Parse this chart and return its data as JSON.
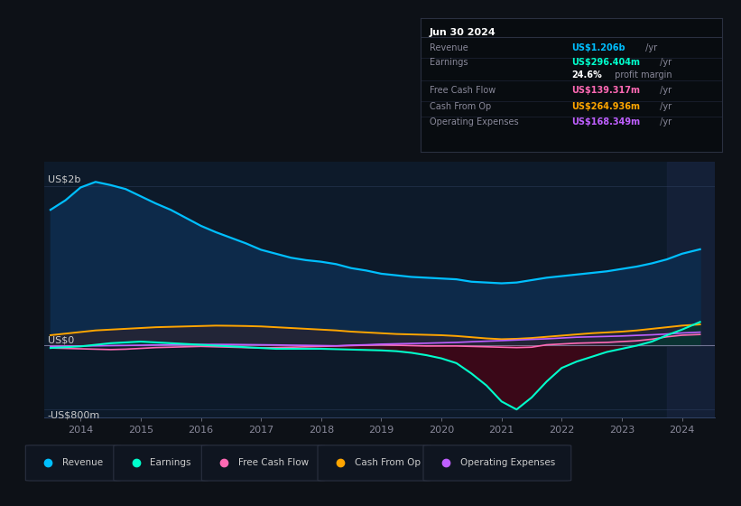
{
  "bg_color": "#0d1117",
  "plot_bg_color": "#0d1a2a",
  "fig_width": 8.21,
  "fig_height": 5.6,
  "dpi": 100,
  "years": [
    2013.5,
    2013.75,
    2014.0,
    2014.25,
    2014.5,
    2014.75,
    2015.0,
    2015.25,
    2015.5,
    2015.75,
    2016.0,
    2016.25,
    2016.5,
    2016.75,
    2017.0,
    2017.25,
    2017.5,
    2017.75,
    2018.0,
    2018.25,
    2018.5,
    2018.75,
    2019.0,
    2019.25,
    2019.5,
    2019.75,
    2020.0,
    2020.25,
    2020.5,
    2020.75,
    2021.0,
    2021.25,
    2021.5,
    2021.75,
    2022.0,
    2022.25,
    2022.5,
    2022.75,
    2023.0,
    2023.25,
    2023.5,
    2023.75,
    2024.0,
    2024.3
  ],
  "revenue": [
    1700,
    1820,
    1980,
    2050,
    2010,
    1960,
    1870,
    1780,
    1700,
    1600,
    1500,
    1420,
    1350,
    1280,
    1200,
    1150,
    1100,
    1070,
    1050,
    1020,
    970,
    940,
    900,
    880,
    860,
    850,
    840,
    830,
    800,
    790,
    780,
    790,
    820,
    850,
    870,
    890,
    910,
    930,
    960,
    990,
    1030,
    1080,
    1150,
    1206
  ],
  "earnings": [
    -30,
    -20,
    -10,
    10,
    30,
    40,
    50,
    40,
    30,
    20,
    10,
    0,
    -10,
    -20,
    -30,
    -40,
    -40,
    -40,
    -40,
    -45,
    -50,
    -55,
    -60,
    -70,
    -90,
    -120,
    -160,
    -220,
    -350,
    -500,
    -700,
    -800,
    -650,
    -450,
    -280,
    -200,
    -140,
    -80,
    -40,
    0,
    50,
    130,
    200,
    296
  ],
  "free_cash_flow": [
    -30,
    -35,
    -40,
    -45,
    -50,
    -45,
    -35,
    -25,
    -20,
    -15,
    -10,
    -15,
    -20,
    -25,
    -30,
    -25,
    -20,
    -15,
    -10,
    -5,
    0,
    5,
    10,
    5,
    0,
    -5,
    -5,
    -5,
    -10,
    -15,
    -20,
    -25,
    -20,
    10,
    20,
    30,
    35,
    40,
    50,
    60,
    80,
    110,
    130,
    139
  ],
  "cash_from_op": [
    130,
    150,
    170,
    190,
    200,
    210,
    220,
    230,
    235,
    240,
    245,
    250,
    248,
    245,
    240,
    230,
    220,
    210,
    200,
    190,
    175,
    165,
    155,
    145,
    140,
    135,
    130,
    120,
    105,
    90,
    80,
    85,
    95,
    110,
    125,
    140,
    155,
    165,
    175,
    190,
    210,
    230,
    250,
    265
  ],
  "operating_expenses": [
    -10,
    -8,
    -5,
    -3,
    0,
    2,
    5,
    8,
    10,
    12,
    14,
    15,
    14,
    12,
    10,
    8,
    5,
    3,
    0,
    -3,
    5,
    10,
    18,
    22,
    26,
    30,
    35,
    40,
    48,
    55,
    62,
    70,
    78,
    85,
    95,
    105,
    110,
    115,
    120,
    128,
    135,
    145,
    158,
    168
  ],
  "revenue_color": "#00bfff",
  "earnings_color": "#00ffcc",
  "fcf_color": "#ff69b4",
  "cashop_color": "#ffa500",
  "opex_color": "#bf5fff",
  "ylabel_2b": "US$2b",
  "ylabel_0": "US$0",
  "ylabel_neg800m": "-US$800m",
  "ylim_min": -900,
  "ylim_max": 2300,
  "xlim_min": 2013.4,
  "xlim_max": 2024.55,
  "xticks": [
    2014,
    2015,
    2016,
    2017,
    2018,
    2019,
    2020,
    2021,
    2022,
    2023,
    2024
  ],
  "legend_labels": [
    "Revenue",
    "Earnings",
    "Free Cash Flow",
    "Cash From Op",
    "Operating Expenses"
  ],
  "legend_colors": [
    "#00bfff",
    "#00ffcc",
    "#ff69b4",
    "#ffa500",
    "#bf5fff"
  ],
  "info_box": {
    "date": "Jun 30 2024",
    "rows": [
      {
        "label": "Revenue",
        "value": "US$1.206b",
        "color": "#00bfff",
        "suffix": "/yr"
      },
      {
        "label": "Earnings",
        "value": "US$296.404m",
        "color": "#00ffcc",
        "suffix": "/yr"
      },
      {
        "label": "",
        "value": "24.6%",
        "color": "#ffffff",
        "suffix": "profit margin"
      },
      {
        "label": "Free Cash Flow",
        "value": "US$139.317m",
        "color": "#ff69b4",
        "suffix": "/yr"
      },
      {
        "label": "Cash From Op",
        "value": "US$264.936m",
        "color": "#ffa500",
        "suffix": "/yr"
      },
      {
        "label": "Operating Expenses",
        "value": "US$168.349m",
        "color": "#bf5fff",
        "suffix": "/yr"
      }
    ]
  }
}
